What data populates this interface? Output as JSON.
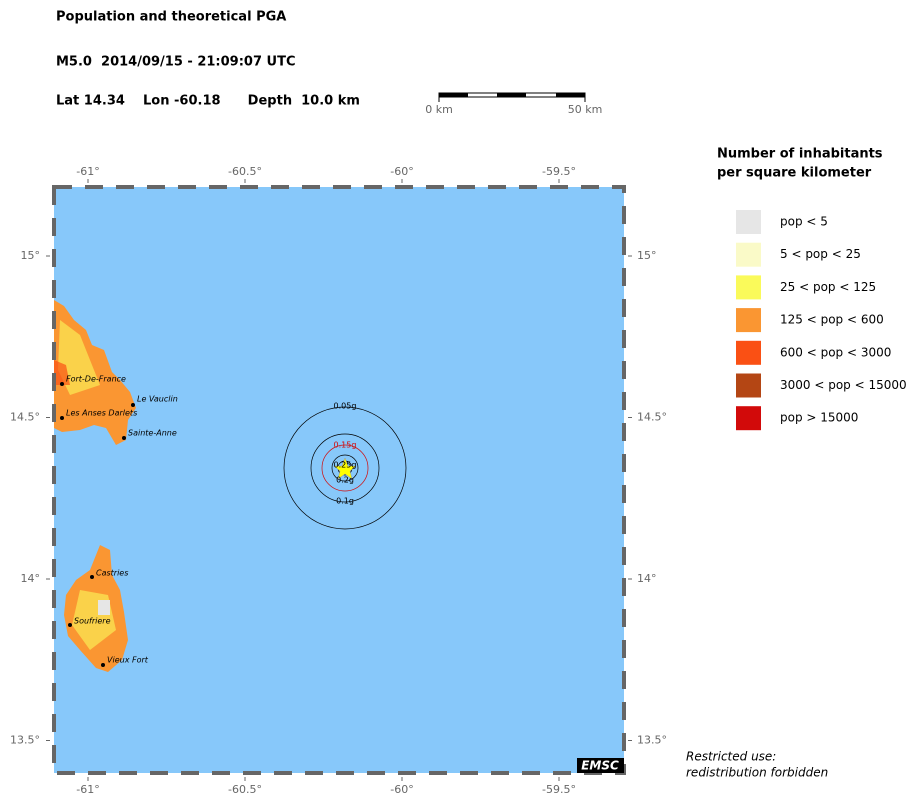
{
  "header": {
    "title": "Population and theoretical PGA",
    "event": "M5.0  2014/09/15 - 21:09:07 UTC",
    "location": "Lat 14.34    Lon -60.18      Depth  10.0 km"
  },
  "scale_bar": {
    "start": "0 km",
    "end": "50 km"
  },
  "map": {
    "lon_ticks": [
      {
        "value": -61,
        "label": "-61°"
      },
      {
        "value": -60.5,
        "label": "-60.5°"
      },
      {
        "value": -60,
        "label": "-60°"
      },
      {
        "value": -59.5,
        "label": "-59.5°"
      }
    ],
    "lat_ticks": [
      {
        "value": 15,
        "label": "15°"
      },
      {
        "value": 14.5,
        "label": "14.5°"
      },
      {
        "value": 14,
        "label": "14°"
      },
      {
        "value": 13.5,
        "label": "13.5°"
      }
    ],
    "cities": [
      "Fort-De-France",
      "Le Vauclin",
      "Les Anses Darlets",
      "Sainte-Anne",
      "Castries",
      "Soufriere",
      "Vieux Fort"
    ],
    "pga_contours": [
      "0.05g",
      "0.1g",
      "0.15g",
      "0.2g",
      "0.25g"
    ],
    "badge": "EMSC"
  },
  "legend": {
    "title_lines": [
      "Number of inhabitants",
      "per square kilometer"
    ],
    "items": [
      {
        "label": "pop < 5",
        "color": "#e6e6e6"
      },
      {
        "label": "5 < pop < 25",
        "color": "#fafac8"
      },
      {
        "label": "25 < pop < 125",
        "color": "#fafa5a"
      },
      {
        "label": "125 < pop < 600",
        "color": "#fa9632"
      },
      {
        "label": "600 < pop < 3000",
        "color": "#fa5014"
      },
      {
        "label": "3000 < pop < 15000",
        "color": "#b44614"
      },
      {
        "label": "pop > 15000",
        "color": "#d20a0a"
      }
    ]
  },
  "notice": [
    "Restricted use:",
    "redistribution forbidden"
  ]
}
